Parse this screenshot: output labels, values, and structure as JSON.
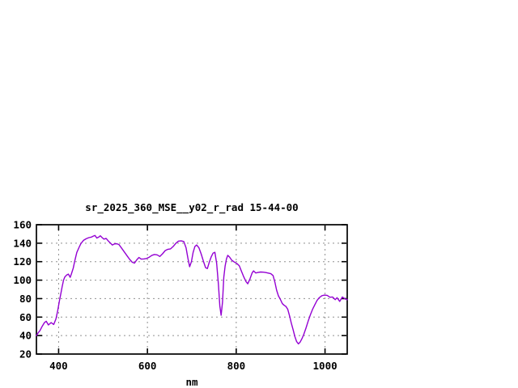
{
  "chart_data": {
    "type": "line",
    "title": "sr_2025_360_MSE__y02_r_rad 15-44-00",
    "xlabel": "nm",
    "ylabel": "",
    "xlim": [
      350,
      1050
    ],
    "ylim": [
      20,
      160
    ],
    "x_ticks": [
      400,
      600,
      800,
      1000
    ],
    "y_ticks": [
      20,
      40,
      60,
      80,
      100,
      120,
      140,
      160
    ],
    "grid": true,
    "legend_position": "none",
    "line_color": "#9400d3",
    "grid_color": "#909090",
    "axis_color": "#000000",
    "background_color": "#ffffff",
    "series": [
      {
        "x": [
          350,
          354,
          358,
          363,
          368,
          372,
          377,
          383,
          389,
          394,
          398,
          402,
          405,
          408,
          411,
          414,
          418,
          422,
          426,
          429,
          433,
          437,
          441,
          446,
          450,
          456,
          462,
          468,
          474,
          479,
          482,
          486,
          490,
          494,
          498,
          502,
          507,
          512,
          517,
          521,
          526,
          531,
          536,
          542,
          548,
          554,
          560,
          566,
          571,
          576,
          581,
          586,
          592,
          598,
          604,
          610,
          616,
          622,
          628,
          634,
          640,
          646,
          652,
          658,
          664,
          670,
          676,
          682,
          687,
          691,
          695,
          699,
          703,
          707,
          711,
          716,
          721,
          726,
          731,
          735,
          739,
          744,
          748,
          752,
          756,
          760,
          763,
          766,
          769,
          772,
          775,
          778,
          781,
          785,
          790,
          796,
          802,
          807,
          812,
          817,
          822,
          826,
          831,
          836,
          839,
          844,
          849,
          855,
          861,
          867,
          873,
          878,
          883,
          887,
          891,
          895,
          899,
          904,
          908,
          912,
          916,
          920,
          924,
          928,
          932,
          936,
          940,
          944,
          948,
          952,
          957,
          962,
          967,
          972,
          977,
          982,
          987,
          993,
          999,
          1005,
          1011,
          1017,
          1023,
          1027,
          1033,
          1039,
          1045,
          1050
        ],
        "y": [
          40,
          43,
          45.5,
          50,
          54,
          55.5,
          51.5,
          54,
          52,
          58,
          67,
          78,
          85.5,
          93,
          100,
          103.5,
          105.5,
          106.5,
          103,
          107,
          113,
          122,
          130,
          135.5,
          139.5,
          143,
          144.8,
          146,
          146.6,
          147.8,
          148.4,
          145.6,
          146.5,
          148,
          146,
          144.4,
          145.2,
          142.3,
          140,
          138,
          139.3,
          139.4,
          138.5,
          134.5,
          130.5,
          126.5,
          122.5,
          119.3,
          118.4,
          122,
          124.6,
          122.7,
          123,
          123.4,
          124.8,
          126.8,
          127.8,
          127.4,
          125.6,
          128.5,
          132,
          133.4,
          133.8,
          136.5,
          140,
          142.2,
          142.6,
          141.8,
          135,
          124,
          114.5,
          120,
          130,
          136.5,
          138,
          135,
          128.5,
          120.5,
          113.5,
          112.5,
          119,
          125.5,
          129.3,
          130.2,
          118,
          95,
          72,
          62,
          76,
          103,
          115,
          123,
          126.8,
          125,
          121.5,
          119.5,
          117.8,
          115.5,
          109.5,
          103.5,
          98.5,
          96,
          101.5,
          108,
          110,
          107.8,
          108.3,
          108.8,
          108.6,
          108.2,
          107.6,
          107,
          105,
          98,
          89,
          83,
          79.5,
          74.5,
          72.8,
          71.5,
          68.5,
          61.5,
          53.5,
          46.5,
          39,
          33.5,
          31,
          33,
          36.5,
          41,
          48,
          55.5,
          62.5,
          68.5,
          73.5,
          78,
          81,
          83.2,
          83.8,
          83.5,
          81.5,
          81.8,
          78.9,
          81,
          77,
          81.8,
          79.8,
          78.8
        ]
      }
    ]
  }
}
